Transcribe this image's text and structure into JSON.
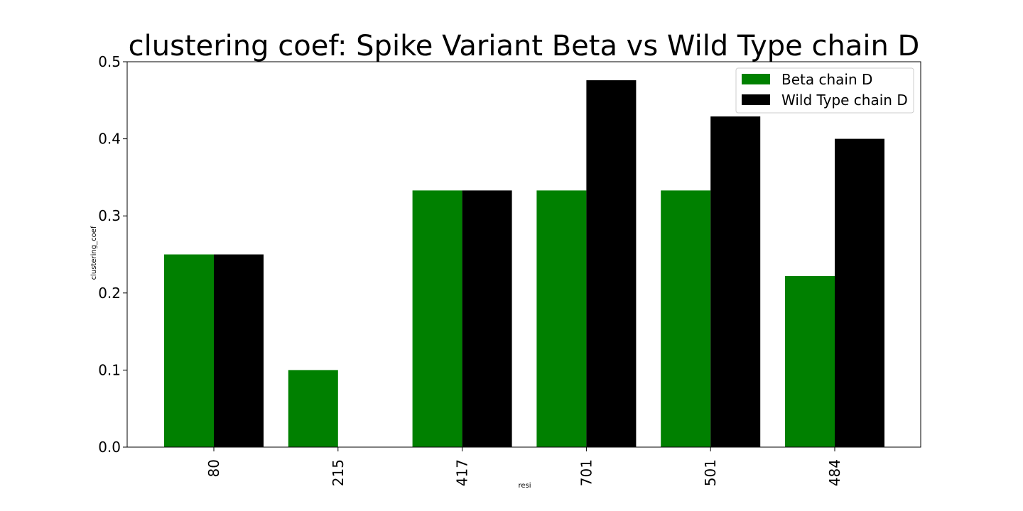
{
  "chart_data": {
    "type": "bar",
    "title": "clustering coef: Spike Variant Beta vs Wild Type chain D",
    "xlabel": "resi",
    "ylabel": "clustering_coef",
    "categories": [
      "80",
      "215",
      "417",
      "701",
      "501",
      "484"
    ],
    "series": [
      {
        "name": "Beta chain D",
        "color": "#008000",
        "values": [
          0.25,
          0.1,
          0.333,
          0.333,
          0.333,
          0.222
        ]
      },
      {
        "name": "Wild Type chain D",
        "color": "#000000",
        "values": [
          0.25,
          0.0,
          0.333,
          0.476,
          0.429,
          0.4
        ]
      }
    ],
    "ylim": [
      0,
      0.5
    ],
    "yticks": [
      0.0,
      0.1,
      0.2,
      0.3,
      0.4,
      0.5
    ],
    "ytick_labels": [
      "0.0",
      "0.1",
      "0.2",
      "0.3",
      "0.4",
      "0.5"
    ],
    "grid": false,
    "legend_position": "top-right"
  }
}
